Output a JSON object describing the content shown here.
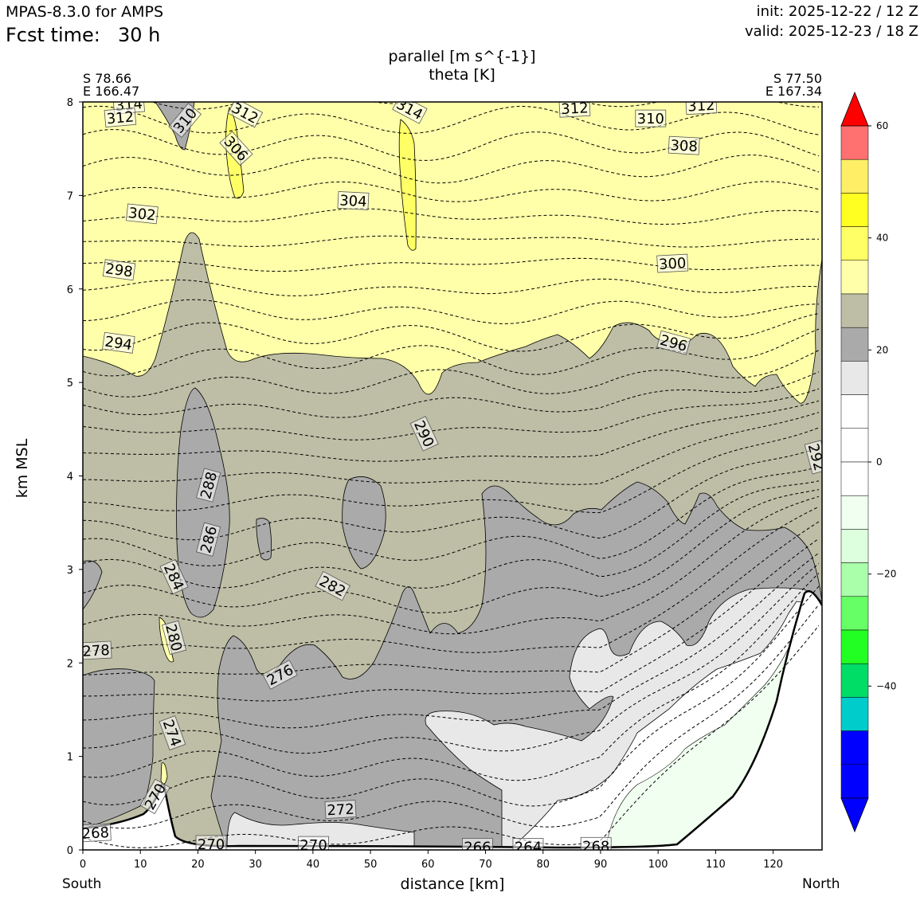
{
  "header": {
    "model": "MPAS-8.3.0 for AMPS",
    "fcst_label": "Fcst time:",
    "fcst_value": "30 h",
    "init": "init: 2025-12-22 / 12 Z",
    "valid": "valid: 2025-12-23 / 18 Z"
  },
  "chart_data": {
    "type": "cross-section (filled contour + line contour)",
    "title_line1": "parallel [m s^{-1}]",
    "title_line2": "theta [K]",
    "xlabel": "distance [km]",
    "ylabel": "km MSL",
    "xlim": [
      0,
      128.5
    ],
    "ylim": [
      0,
      8
    ],
    "xticks": [
      0,
      10,
      20,
      30,
      40,
      50,
      60,
      70,
      80,
      90,
      100,
      110,
      120
    ],
    "yticks": [
      0,
      1,
      2,
      3,
      4,
      5,
      6,
      7,
      8
    ],
    "left_end": {
      "direction": "South",
      "lat": "S 78.66",
      "lon": "E 166.47"
    },
    "right_end": {
      "direction": "North",
      "lat": "S 77.50",
      "lon": "E 167.34"
    },
    "colorbar": {
      "levels": [
        -60,
        -55,
        -50,
        -45,
        -40,
        -35,
        -30,
        -25,
        -20,
        -15,
        -10,
        -5,
        0,
        5,
        10,
        15,
        20,
        25,
        30,
        35,
        40,
        45,
        50,
        55,
        60
      ],
      "colors": [
        "#0000ff",
        "#0000ff",
        "#0000ff",
        "#00cccc",
        "#00dd66",
        "#22ff22",
        "#66ff66",
        "#aaffaa",
        "#ddffdd",
        "#f0fff0",
        "#ffffff",
        "#ffffff",
        "#ffffff",
        "#e8e8e8",
        "#aaaaaa",
        "#bebea6",
        "#ffffaa",
        "#ffff66",
        "#ffff22",
        "#ffee66",
        "#ff7070",
        "#ff0000"
      ],
      "tick_labels": [
        "60",
        "40",
        "20",
        "0",
        "−20",
        "−40"
      ],
      "extend": "both"
    },
    "theta_labels": [
      {
        "text": "314",
        "x": 8,
        "y": 7.97,
        "rot": -5
      },
      {
        "text": "312",
        "x": 6.5,
        "y": 7.83,
        "rot": -5
      },
      {
        "text": "310",
        "x": 17.8,
        "y": 7.8,
        "rot": -50
      },
      {
        "text": "312",
        "x": 28.2,
        "y": 7.88,
        "rot": 28
      },
      {
        "text": "306",
        "x": 26.6,
        "y": 7.5,
        "rot": 48
      },
      {
        "text": "314",
        "x": 56.8,
        "y": 7.92,
        "rot": 28
      },
      {
        "text": "312",
        "x": 85.5,
        "y": 7.93,
        "rot": -3
      },
      {
        "text": "310",
        "x": 98.7,
        "y": 7.82,
        "rot": 0
      },
      {
        "text": "312",
        "x": 107.5,
        "y": 7.96,
        "rot": -3
      },
      {
        "text": "308",
        "x": 104.5,
        "y": 7.53,
        "rot": 3
      },
      {
        "text": "304",
        "x": 47,
        "y": 6.94,
        "rot": 3
      },
      {
        "text": "302",
        "x": 10.3,
        "y": 6.8,
        "rot": 6
      },
      {
        "text": "298",
        "x": 6.3,
        "y": 6.2,
        "rot": 8
      },
      {
        "text": "300",
        "x": 102.5,
        "y": 6.27,
        "rot": -3
      },
      {
        "text": "294",
        "x": 6.2,
        "y": 5.42,
        "rot": 8
      },
      {
        "text": "296",
        "x": 102.7,
        "y": 5.42,
        "rot": 15
      },
      {
        "text": "290",
        "x": 59.3,
        "y": 4.45,
        "rot": 65
      },
      {
        "text": "292",
        "x": 127.5,
        "y": 4.2,
        "rot": 75
      },
      {
        "text": "288",
        "x": 21.9,
        "y": 3.9,
        "rot": -75
      },
      {
        "text": "286",
        "x": 21.9,
        "y": 3.32,
        "rot": -75
      },
      {
        "text": "284",
        "x": 15.8,
        "y": 2.92,
        "rot": 65
      },
      {
        "text": "282",
        "x": 43.4,
        "y": 2.82,
        "rot": 28
      },
      {
        "text": "280",
        "x": 15.8,
        "y": 2.27,
        "rot": 75
      },
      {
        "text": "278",
        "x": 2.3,
        "y": 2.13,
        "rot": -3
      },
      {
        "text": "276",
        "x": 34.3,
        "y": 1.87,
        "rot": -28
      },
      {
        "text": "274",
        "x": 15.5,
        "y": 1.25,
        "rot": 70
      },
      {
        "text": "270",
        "x": 12.6,
        "y": 0.57,
        "rot": -60
      },
      {
        "text": "272",
        "x": 44.8,
        "y": 0.43,
        "rot": -3
      },
      {
        "text": "268",
        "x": 2.2,
        "y": 0.18,
        "rot": -3
      },
      {
        "text": "270",
        "x": 22.3,
        "y": 0.06,
        "rot": 0
      },
      {
        "text": "270",
        "x": 40.1,
        "y": 0.05,
        "rot": 0
      },
      {
        "text": "266",
        "x": 68.6,
        "y": 0.03,
        "rot": 0
      },
      {
        "text": "264",
        "x": 77.4,
        "y": 0.03,
        "rot": 0
      },
      {
        "text": "268",
        "x": 89.2,
        "y": 0.04,
        "rot": 0
      }
    ]
  }
}
